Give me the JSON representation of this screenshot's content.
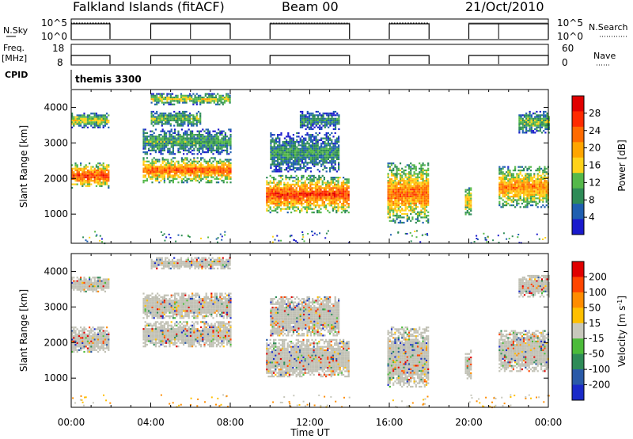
{
  "header": {
    "title": "Falkland Islands (fitACF)",
    "beam": "Beam 00",
    "date": "21/Oct/2010"
  },
  "status_panels": {
    "nsky_label": "N.Sky",
    "nsky_ticks": [
      "10^5",
      "10^0"
    ],
    "nsearch_label": "N.Search",
    "nsearch_ticks": [
      "10^5",
      "10^0"
    ],
    "freq_label": "Freq.",
    "freq_unit": "[MHz]",
    "freq_ticks": [
      "18",
      "8"
    ],
    "nave_label": "Nave",
    "nave_ticks": [
      "60",
      "0"
    ],
    "cpid_label": "CPID",
    "cpid_value": "themis 3300"
  },
  "colors": {
    "power_scale": [
      "#1a1acc",
      "#1f5fb0",
      "#2e8b57",
      "#55b84a",
      "#ffd21a",
      "#ffa500",
      "#ff6a00",
      "#ff2a00",
      "#e00000"
    ],
    "velocity_scale": [
      "#1a2ac8",
      "#2a5aa8",
      "#2e8b57",
      "#4cbb3a",
      "#c8c8bc",
      "#ffbf00",
      "#ff8c00",
      "#ff4500",
      "#e00000"
    ],
    "ground_scatter": "#c0c0b4"
  },
  "chart_data": [
    {
      "type": "heatmap",
      "name": "power",
      "ylabel": "Slant Range [km]",
      "xlabel": "Time UT",
      "x_ticks": [
        "00:00",
        "04:00",
        "08:00",
        "12:00",
        "16:00",
        "20:00",
        "00:00"
      ],
      "xlim_hours": [
        0,
        24
      ],
      "ylim_km": [
        180,
        4500
      ],
      "y_ticks": [
        1000,
        2000,
        3000,
        4000
      ],
      "colorbar": {
        "label": "Power [dB]",
        "ticks": [
          4,
          8,
          12,
          16,
          20,
          24,
          28
        ],
        "range": [
          0,
          30
        ]
      },
      "scatter_regions": [
        {
          "t0": 0.0,
          "t1": 1.9,
          "r0": 1750,
          "r1": 2450,
          "v": 24
        },
        {
          "t0": 0.0,
          "t1": 1.9,
          "r0": 3450,
          "r1": 3850,
          "v": 14
        },
        {
          "t0": 3.6,
          "t1": 8.0,
          "r0": 1900,
          "r1": 2600,
          "v": 22
        },
        {
          "t0": 3.6,
          "t1": 8.0,
          "r0": 2700,
          "r1": 3400,
          "v": 10
        },
        {
          "t0": 4.0,
          "t1": 6.5,
          "r0": 3500,
          "r1": 3900,
          "v": 12
        },
        {
          "t0": 4.0,
          "t1": 8.0,
          "r0": 4100,
          "r1": 4400,
          "v": 14
        },
        {
          "t0": 9.8,
          "t1": 14.0,
          "r0": 1050,
          "r1": 2100,
          "v": 24
        },
        {
          "t0": 10.0,
          "t1": 13.5,
          "r0": 2200,
          "r1": 3300,
          "v": 9
        },
        {
          "t0": 11.5,
          "t1": 13.5,
          "r0": 3400,
          "r1": 3900,
          "v": 8
        },
        {
          "t0": 15.9,
          "t1": 18.0,
          "r0": 750,
          "r1": 2450,
          "v": 21
        },
        {
          "t0": 19.8,
          "t1": 20.1,
          "r0": 1000,
          "r1": 1800,
          "v": 17
        },
        {
          "t0": 21.5,
          "t1": 24.0,
          "r0": 1200,
          "r1": 2350,
          "v": 20
        },
        {
          "t0": 22.5,
          "t1": 24.0,
          "r0": 3300,
          "r1": 3900,
          "v": 12
        }
      ]
    },
    {
      "type": "heatmap",
      "name": "velocity",
      "ylabel": "Slant Range [km]",
      "xlabel": "Time UT",
      "x_ticks": [
        "00:00",
        "04:00",
        "08:00",
        "12:00",
        "16:00",
        "20:00",
        "00:00"
      ],
      "xlim_hours": [
        0,
        24
      ],
      "ylim_km": [
        180,
        4500
      ],
      "y_ticks": [
        1000,
        2000,
        3000,
        4000
      ],
      "colorbar": {
        "label": "Velocity [m s",
        "label_sup": "-1",
        "label_end": "]",
        "ticks": [
          "200",
          "100",
          "50",
          "15",
          "-15",
          "-50",
          "-100",
          "-200"
        ],
        "range": [
          -250,
          250
        ]
      },
      "scatter_regions": [
        {
          "t0": 0.0,
          "t1": 1.9,
          "r0": 1750,
          "r1": 2450,
          "v": 0
        },
        {
          "t0": 0.0,
          "t1": 1.9,
          "r0": 3450,
          "r1": 3850,
          "v": 0
        },
        {
          "t0": 3.6,
          "t1": 8.0,
          "r0": 1900,
          "r1": 2600,
          "v": 0
        },
        {
          "t0": 3.6,
          "t1": 8.0,
          "r0": 2700,
          "r1": 3400,
          "v": 0
        },
        {
          "t0": 4.0,
          "t1": 8.0,
          "r0": 4100,
          "r1": 4400,
          "v": 0
        },
        {
          "t0": 9.8,
          "t1": 14.0,
          "r0": 1050,
          "r1": 2100,
          "v": 0
        },
        {
          "t0": 10.0,
          "t1": 13.5,
          "r0": 2200,
          "r1": 3300,
          "v": 0
        },
        {
          "t0": 15.9,
          "t1": 18.0,
          "r0": 750,
          "r1": 2450,
          "v": 0
        },
        {
          "t0": 19.8,
          "t1": 20.1,
          "r0": 1000,
          "r1": 1800,
          "v": 0
        },
        {
          "t0": 21.5,
          "t1": 24.0,
          "r0": 1200,
          "r1": 2350,
          "v": 0
        },
        {
          "t0": 22.5,
          "t1": 24.0,
          "r0": 3300,
          "r1": 3900,
          "v": 0
        }
      ]
    }
  ]
}
